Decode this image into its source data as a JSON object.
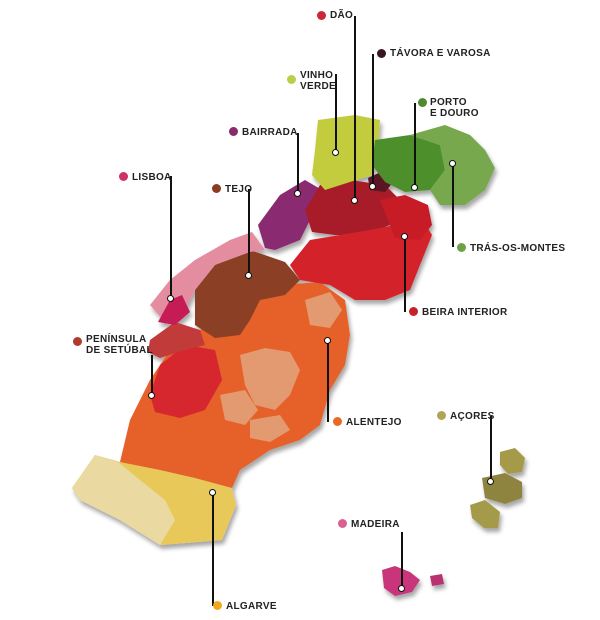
{
  "regions": [
    {
      "id": "dao",
      "label": "DÃO",
      "color": "#c9283a"
    },
    {
      "id": "tavora",
      "label": "TÁVORA E VAROSA",
      "color": "#3a1420"
    },
    {
      "id": "vinho-verde",
      "label": "VINHO VERDE",
      "label_lines": [
        "VINHO",
        "VERDE"
      ],
      "color": "#bccd4a"
    },
    {
      "id": "porto-douro",
      "label": "PORTO E DOURO",
      "label_lines": [
        "PORTO",
        "E DOURO"
      ],
      "color": "#4f8a2c"
    },
    {
      "id": "bairrada",
      "label": "BAIRRADA",
      "color": "#8a2a6a"
    },
    {
      "id": "lisboa",
      "label": "LISBOA",
      "color": "#d02f6a"
    },
    {
      "id": "tejo",
      "label": "TEJO",
      "color": "#8a3b22"
    },
    {
      "id": "tras-os-montes",
      "label": "TRÁS-OS-MONTES",
      "color": "#6ea04a"
    },
    {
      "id": "beira-interior",
      "label": "BEIRA INTERIOR",
      "color": "#c52228"
    },
    {
      "id": "peninsula-setubal",
      "label": "PENÍNSULA DE SETÚBAL",
      "label_lines": [
        "PENÍNSULA",
        "DE SETÚBAL"
      ],
      "color": "#b23a2a"
    },
    {
      "id": "alentejo",
      "label": "ALENTEJO",
      "color": "#ea6a24"
    },
    {
      "id": "acores",
      "label": "AÇORES",
      "color": "#b0a456"
    },
    {
      "id": "madeira",
      "label": "MADEIRA",
      "color": "#d96090"
    },
    {
      "id": "algarve",
      "label": "ALGARVE",
      "color": "#f2a81c"
    }
  ]
}
